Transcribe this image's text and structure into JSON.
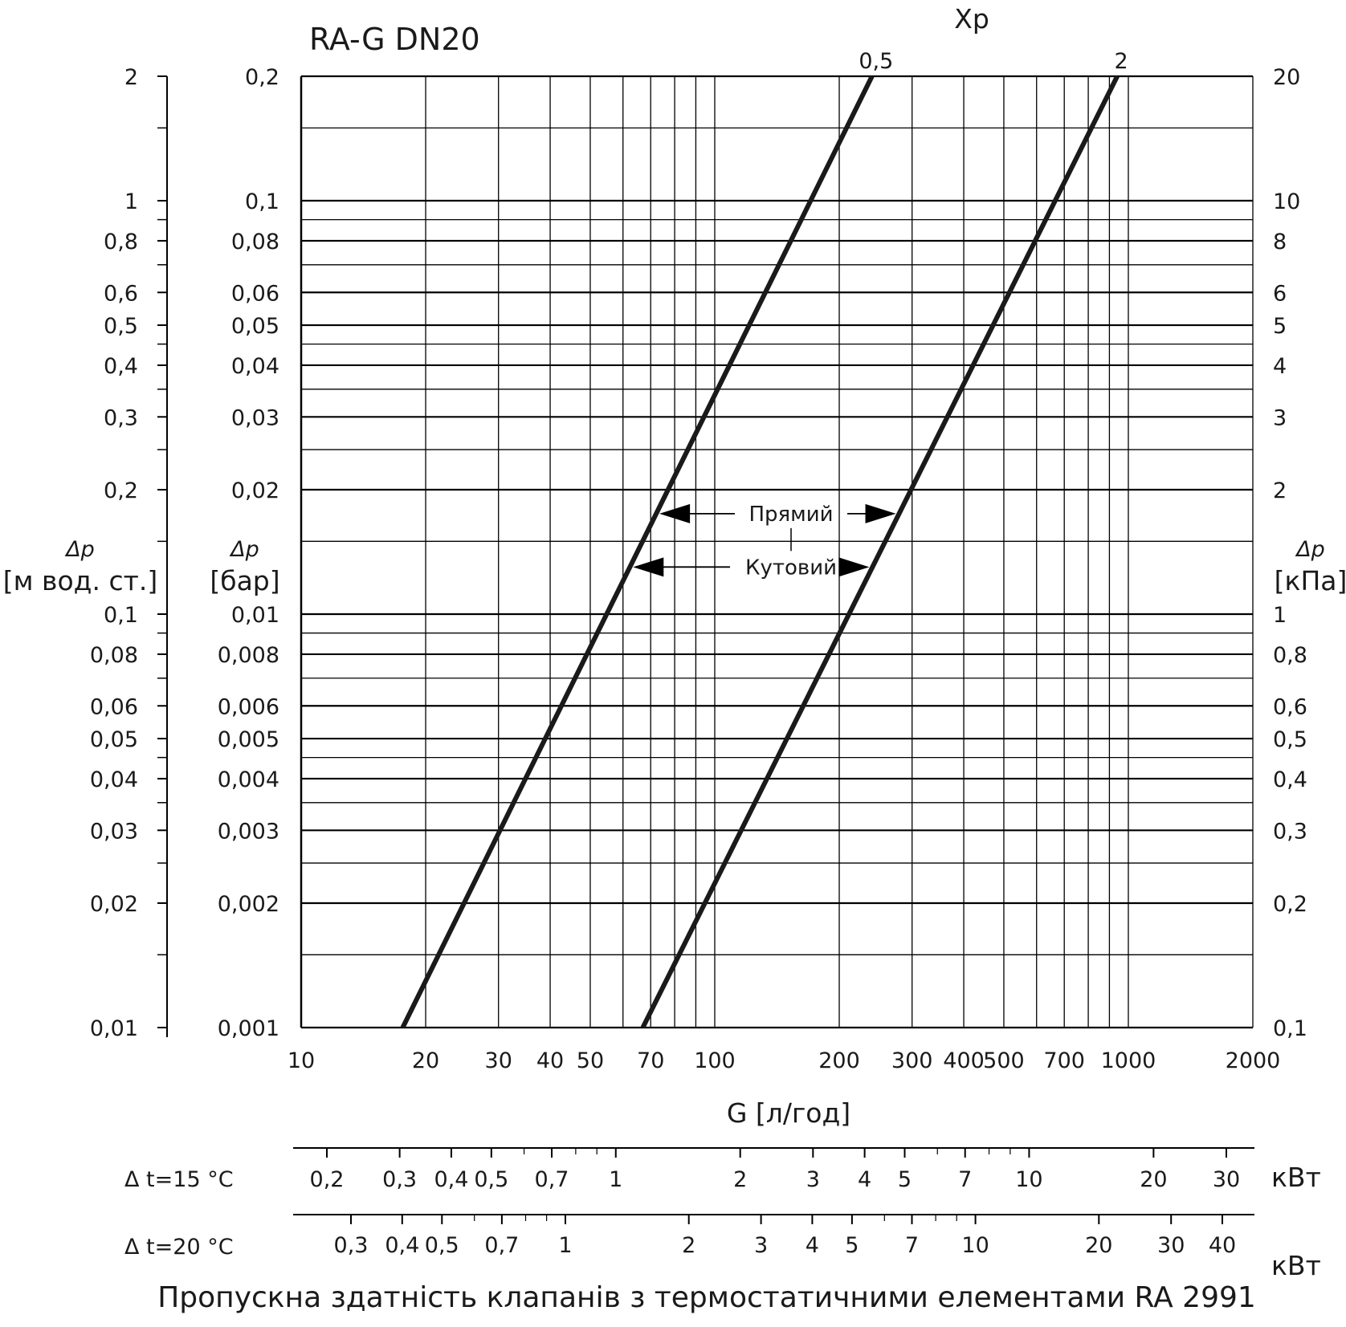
{
  "chart_data": {
    "type": "line",
    "title": "RA-G DN20",
    "xlabel": "G [л/год]",
    "xscale": "log",
    "xlim": [
      10,
      2000
    ],
    "x_ticks": [
      "10",
      "20",
      "30",
      "40",
      "50",
      "70",
      "100",
      "200",
      "300",
      "400",
      "500",
      "700",
      "1000",
      "2000"
    ],
    "ylim_bar": [
      0.001,
      0.2
    ],
    "yscale": "log",
    "y_axes": [
      {
        "unit": "м вод. ст.",
        "label_symbol": "Δp",
        "label_unit": "[м вод. ст.]",
        "position": "left-outer",
        "ticks": [
          "2",
          "1",
          "0,8",
          "0,6",
          "0,5",
          "0,4",
          "0,3",
          "0,2",
          "0,1",
          "0,08",
          "0,06",
          "0,05",
          "0,04",
          "0,03",
          "0,02",
          "0,01"
        ]
      },
      {
        "unit": "бар",
        "label_symbol": "Δp",
        "label_unit": "[бар]",
        "position": "left-inner",
        "ticks": [
          "0,2",
          "0,1",
          "0,08",
          "0,06",
          "0,05",
          "0,04",
          "0,03",
          "0,02",
          "0,01",
          "0,008",
          "0,006",
          "0,005",
          "0,004",
          "0,003",
          "0,002",
          "0,001"
        ]
      },
      {
        "unit": "кПа",
        "label_symbol": "Δp",
        "label_unit": "[кПа]",
        "position": "right",
        "ticks": [
          "20",
          "10",
          "8",
          "6",
          "5",
          "4",
          "3",
          "2",
          "1",
          "0,8",
          "0,6",
          "0,5",
          "0,4",
          "0,3",
          "0,2",
          "0,1"
        ]
      }
    ],
    "series_label": "Xp",
    "series": [
      {
        "name": "0,5",
        "x": [
          17.6,
          240
        ],
        "y_bar": [
          0.001,
          0.2
        ]
      },
      {
        "name": "2",
        "x": [
          67,
          940
        ],
        "y_bar": [
          0.001,
          0.2
        ]
      }
    ],
    "annotations": [
      {
        "text": "Прямий",
        "y_bar": 0.0175
      },
      {
        "text": "Кутовий",
        "y_bar": 0.013
      }
    ],
    "power_scales": [
      {
        "label": "Δ t=15 °C",
        "unit": "кВт",
        "ticks": [
          "0,2",
          "0,3",
          "0,4",
          "0,5",
          "0,7",
          "1",
          "2",
          "3",
          "4",
          "5",
          "7",
          "10",
          "20",
          "30"
        ]
      },
      {
        "label": "Δ t=20 °C",
        "unit": "кВт",
        "ticks": [
          "0,3",
          "0,4",
          "0,5",
          "0,7",
          "1",
          "2",
          "3",
          "4",
          "5",
          "7",
          "10",
          "20",
          "30",
          "40"
        ]
      }
    ],
    "caption": "Пропускна здатність клапанів з термостатичними елементами RA 2991",
    "grid": true,
    "legend": "none"
  }
}
